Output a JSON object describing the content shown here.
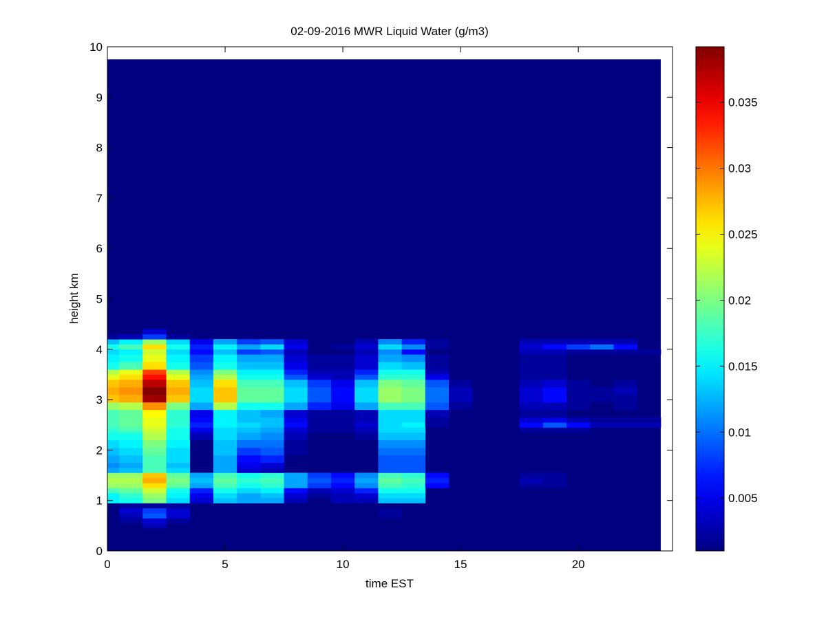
{
  "chart_data": {
    "type": "heatmap",
    "title": "02-09-2016 MWR Liquid Water (g/m3)",
    "xlabel": "time EST",
    "ylabel": "height km",
    "xlim": [
      0,
      24
    ],
    "ylim": [
      0,
      10
    ],
    "xticks": [
      0,
      5,
      10,
      15,
      20
    ],
    "yticks": [
      0,
      1,
      2,
      3,
      4,
      5,
      6,
      7,
      8,
      9,
      10
    ],
    "colormap": "jet",
    "colorbar": {
      "range": [
        0.001,
        0.0392
      ],
      "ticks": [
        0.005,
        0.01,
        0.015,
        0.02,
        0.025,
        0.03,
        0.035
      ],
      "tick_labels": [
        "0.005",
        "0.01",
        "0.015",
        "0.02",
        "0.025",
        "0.03",
        "0.035"
      ]
    },
    "background_value": 0.001,
    "data_extent": {
      "x": [
        0,
        23.5
      ],
      "y": [
        0,
        9.75
      ]
    },
    "time_columns": [
      0,
      1,
      2,
      3,
      4,
      5,
      6,
      7,
      8,
      9,
      10,
      11,
      12,
      13,
      14,
      15,
      16,
      17,
      18,
      19,
      20,
      21,
      22,
      23
    ],
    "height_rows": [
      [
        0.45,
        0.55
      ],
      [
        0.55,
        0.65
      ],
      [
        0.65,
        0.75
      ],
      [
        0.75,
        0.85
      ],
      [
        0.85,
        0.95
      ],
      [
        0.95,
        1.05
      ],
      [
        1.05,
        1.15
      ],
      [
        1.15,
        1.25
      ],
      [
        1.25,
        1.35
      ],
      [
        1.35,
        1.45
      ],
      [
        1.45,
        1.55
      ],
      [
        1.55,
        1.65
      ],
      [
        1.65,
        1.75
      ],
      [
        1.75,
        1.9
      ],
      [
        1.9,
        2.05
      ],
      [
        2.05,
        2.2
      ],
      [
        2.2,
        2.35
      ],
      [
        2.35,
        2.45
      ],
      [
        2.45,
        2.55
      ],
      [
        2.55,
        2.65
      ],
      [
        2.65,
        2.8
      ],
      [
        2.8,
        2.95
      ],
      [
        2.95,
        3.1
      ],
      [
        3.1,
        3.25
      ],
      [
        3.25,
        3.4
      ],
      [
        3.4,
        3.5
      ],
      [
        3.5,
        3.6
      ],
      [
        3.6,
        3.75
      ],
      [
        3.75,
        3.9
      ],
      [
        3.9,
        4.0
      ],
      [
        4.0,
        4.1
      ],
      [
        4.1,
        4.2
      ],
      [
        4.2,
        4.3
      ],
      [
        4.3,
        4.4
      ]
    ],
    "values": [
      [
        0.001,
        0.001,
        0.003,
        0.001,
        0.001,
        0.001,
        0.001,
        0.001,
        0.001,
        0.001,
        0.001,
        0.001,
        0.001,
        0.001,
        0.001,
        0.001,
        0.001,
        0.001,
        0.001,
        0.001,
        0.001,
        0.001,
        0.001,
        0.001
      ],
      [
        0.001,
        0.002,
        0.004,
        0.002,
        0.001,
        0.001,
        0.001,
        0.001,
        0.001,
        0.001,
        0.001,
        0.001,
        0.001,
        0.001,
        0.001,
        0.001,
        0.001,
        0.001,
        0.001,
        0.001,
        0.001,
        0.001,
        0.001,
        0.001
      ],
      [
        0.001,
        0.003,
        0.009,
        0.004,
        0.001,
        0.001,
        0.001,
        0.001,
        0.001,
        0.001,
        0.001,
        0.001,
        0.002,
        0.001,
        0.001,
        0.001,
        0.001,
        0.001,
        0.001,
        0.001,
        0.001,
        0.001,
        0.001,
        0.001
      ],
      [
        0.001,
        0.004,
        0.008,
        0.004,
        0.001,
        0.001,
        0.001,
        0.001,
        0.001,
        0.001,
        0.001,
        0.001,
        0.002,
        0.001,
        0.001,
        0.001,
        0.001,
        0.001,
        0.001,
        0.001,
        0.001,
        0.001,
        0.001,
        0.001
      ],
      [
        0.001,
        0.002,
        0.002,
        0.002,
        0.001,
        0.001,
        0.001,
        0.001,
        0.001,
        0.001,
        0.001,
        0.001,
        0.001,
        0.001,
        0.001,
        0.001,
        0.001,
        0.001,
        0.001,
        0.001,
        0.001,
        0.001,
        0.001,
        0.001
      ],
      [
        0.015,
        0.016,
        0.02,
        0.014,
        0.004,
        0.013,
        0.012,
        0.012,
        0.003,
        0.001,
        0.003,
        0.003,
        0.013,
        0.013,
        0.001,
        0.001,
        0.001,
        0.001,
        0.001,
        0.001,
        0.001,
        0.001,
        0.001,
        0.001
      ],
      [
        0.015,
        0.017,
        0.021,
        0.015,
        0.005,
        0.014,
        0.012,
        0.013,
        0.004,
        0.002,
        0.003,
        0.004,
        0.014,
        0.014,
        0.001,
        0.001,
        0.001,
        0.001,
        0.001,
        0.001,
        0.001,
        0.001,
        0.001,
        0.001
      ],
      [
        0.018,
        0.019,
        0.023,
        0.016,
        0.007,
        0.016,
        0.014,
        0.015,
        0.006,
        0.003,
        0.004,
        0.007,
        0.016,
        0.016,
        0.001,
        0.001,
        0.001,
        0.001,
        0.001,
        0.001,
        0.001,
        0.001,
        0.001,
        0.001
      ],
      [
        0.021,
        0.021,
        0.026,
        0.019,
        0.012,
        0.018,
        0.016,
        0.017,
        0.012,
        0.008,
        0.006,
        0.011,
        0.018,
        0.017,
        0.006,
        0.001,
        0.001,
        0.001,
        0.002,
        0.002,
        0.001,
        0.001,
        0.001,
        0.001
      ],
      [
        0.022,
        0.022,
        0.028,
        0.02,
        0.013,
        0.019,
        0.017,
        0.018,
        0.012,
        0.009,
        0.007,
        0.012,
        0.019,
        0.018,
        0.007,
        0.001,
        0.001,
        0.001,
        0.003,
        0.002,
        0.001,
        0.001,
        0.001,
        0.001
      ],
      [
        0.021,
        0.021,
        0.027,
        0.019,
        0.012,
        0.018,
        0.016,
        0.017,
        0.012,
        0.008,
        0.006,
        0.011,
        0.018,
        0.017,
        0.006,
        0.001,
        0.001,
        0.001,
        0.002,
        0.002,
        0.001,
        0.001,
        0.001,
        0.001
      ],
      [
        0.012,
        0.013,
        0.018,
        0.014,
        0.001,
        0.012,
        0.004,
        0.003,
        0.001,
        0.001,
        0.001,
        0.001,
        0.009,
        0.009,
        0.001,
        0.001,
        0.001,
        0.001,
        0.001,
        0.001,
        0.001,
        0.001,
        0.001,
        0.001
      ],
      [
        0.011,
        0.012,
        0.018,
        0.013,
        0.001,
        0.012,
        0.005,
        0.004,
        0.001,
        0.001,
        0.001,
        0.001,
        0.009,
        0.009,
        0.001,
        0.001,
        0.001,
        0.001,
        0.001,
        0.001,
        0.001,
        0.001,
        0.001,
        0.001
      ],
      [
        0.012,
        0.013,
        0.018,
        0.014,
        0.001,
        0.012,
        0.006,
        0.007,
        0.001,
        0.001,
        0.001,
        0.001,
        0.009,
        0.009,
        0.001,
        0.001,
        0.001,
        0.001,
        0.001,
        0.001,
        0.001,
        0.001,
        0.001,
        0.001
      ],
      [
        0.013,
        0.014,
        0.019,
        0.014,
        0.001,
        0.013,
        0.008,
        0.009,
        0.002,
        0.001,
        0.001,
        0.001,
        0.01,
        0.01,
        0.001,
        0.001,
        0.001,
        0.001,
        0.001,
        0.001,
        0.001,
        0.001,
        0.001,
        0.001
      ],
      [
        0.014,
        0.015,
        0.02,
        0.015,
        0.001,
        0.013,
        0.01,
        0.01,
        0.002,
        0.001,
        0.001,
        0.001,
        0.011,
        0.011,
        0.001,
        0.001,
        0.001,
        0.001,
        0.001,
        0.001,
        0.001,
        0.001,
        0.001,
        0.001
      ],
      [
        0.016,
        0.016,
        0.022,
        0.016,
        0.003,
        0.014,
        0.012,
        0.011,
        0.003,
        0.001,
        0.001,
        0.002,
        0.013,
        0.013,
        0.001,
        0.001,
        0.001,
        0.001,
        0.001,
        0.001,
        0.001,
        0.001,
        0.001,
        0.001
      ],
      [
        0.017,
        0.018,
        0.023,
        0.016,
        0.005,
        0.014,
        0.013,
        0.012,
        0.004,
        0.002,
        0.002,
        0.003,
        0.014,
        0.014,
        0.001,
        0.001,
        0.001,
        0.001,
        0.002,
        0.002,
        0.002,
        0.001,
        0.001,
        0.001
      ],
      [
        0.018,
        0.019,
        0.024,
        0.017,
        0.007,
        0.015,
        0.014,
        0.013,
        0.006,
        0.002,
        0.002,
        0.004,
        0.014,
        0.015,
        0.002,
        0.001,
        0.001,
        0.001,
        0.006,
        0.009,
        0.006,
        0.003,
        0.003,
        0.003
      ],
      [
        0.018,
        0.019,
        0.024,
        0.017,
        0.006,
        0.015,
        0.013,
        0.013,
        0.005,
        0.002,
        0.002,
        0.003,
        0.014,
        0.014,
        0.002,
        0.001,
        0.001,
        0.001,
        0.004,
        0.005,
        0.003,
        0.002,
        0.002,
        0.002
      ],
      [
        0.018,
        0.019,
        0.025,
        0.017,
        0.005,
        0.015,
        0.013,
        0.012,
        0.004,
        0.002,
        0.002,
        0.003,
        0.014,
        0.014,
        0.003,
        0.001,
        0.001,
        0.001,
        0.002,
        0.002,
        0.001,
        0.001,
        0.001,
        0.001
      ],
      [
        0.021,
        0.022,
        0.029,
        0.02,
        0.012,
        0.022,
        0.016,
        0.016,
        0.012,
        0.007,
        0.005,
        0.012,
        0.018,
        0.018,
        0.009,
        0.002,
        0.001,
        0.001,
        0.003,
        0.003,
        0.002,
        0.001,
        0.002,
        0.001
      ],
      [
        0.027,
        0.028,
        0.038,
        0.027,
        0.014,
        0.027,
        0.019,
        0.019,
        0.014,
        0.009,
        0.006,
        0.014,
        0.021,
        0.02,
        0.01,
        0.003,
        0.001,
        0.001,
        0.004,
        0.006,
        0.002,
        0.002,
        0.002,
        0.001
      ],
      [
        0.028,
        0.029,
        0.039,
        0.028,
        0.014,
        0.027,
        0.019,
        0.019,
        0.014,
        0.009,
        0.006,
        0.014,
        0.021,
        0.02,
        0.01,
        0.003,
        0.001,
        0.001,
        0.004,
        0.006,
        0.002,
        0.002,
        0.003,
        0.001
      ],
      [
        0.027,
        0.028,
        0.037,
        0.027,
        0.013,
        0.026,
        0.018,
        0.018,
        0.013,
        0.008,
        0.005,
        0.013,
        0.02,
        0.019,
        0.009,
        0.002,
        0.001,
        0.001,
        0.003,
        0.004,
        0.002,
        0.001,
        0.002,
        0.001
      ],
      [
        0.024,
        0.026,
        0.034,
        0.024,
        0.012,
        0.022,
        0.016,
        0.016,
        0.009,
        0.004,
        0.003,
        0.009,
        0.017,
        0.017,
        0.005,
        0.001,
        0.001,
        0.001,
        0.002,
        0.002,
        0.001,
        0.001,
        0.001,
        0.001
      ],
      [
        0.022,
        0.024,
        0.032,
        0.022,
        0.011,
        0.02,
        0.015,
        0.015,
        0.007,
        0.003,
        0.003,
        0.007,
        0.016,
        0.016,
        0.003,
        0.001,
        0.001,
        0.001,
        0.002,
        0.002,
        0.001,
        0.001,
        0.001,
        0.001
      ],
      [
        0.016,
        0.018,
        0.026,
        0.016,
        0.009,
        0.016,
        0.013,
        0.013,
        0.005,
        0.002,
        0.002,
        0.004,
        0.014,
        0.013,
        0.002,
        0.001,
        0.001,
        0.001,
        0.002,
        0.002,
        0.001,
        0.001,
        0.001,
        0.001
      ],
      [
        0.015,
        0.016,
        0.024,
        0.015,
        0.008,
        0.015,
        0.012,
        0.012,
        0.004,
        0.002,
        0.002,
        0.004,
        0.012,
        0.011,
        0.002,
        0.001,
        0.001,
        0.001,
        0.002,
        0.002,
        0.001,
        0.001,
        0.001,
        0.001
      ],
      [
        0.014,
        0.015,
        0.023,
        0.014,
        0.006,
        0.013,
        0.008,
        0.009,
        0.003,
        0.001,
        0.001,
        0.003,
        0.011,
        0.006,
        0.001,
        0.001,
        0.001,
        0.001,
        0.003,
        0.003,
        0.002,
        0.002,
        0.002,
        0.002
      ],
      [
        0.016,
        0.018,
        0.026,
        0.016,
        0.007,
        0.015,
        0.012,
        0.014,
        0.005,
        0.001,
        0.002,
        0.004,
        0.014,
        0.011,
        0.002,
        0.001,
        0.001,
        0.001,
        0.004,
        0.006,
        0.008,
        0.01,
        0.006,
        0.001
      ],
      [
        0.013,
        0.015,
        0.021,
        0.014,
        0.005,
        0.012,
        0.008,
        0.009,
        0.004,
        0.001,
        0.001,
        0.003,
        0.011,
        0.007,
        0.002,
        0.001,
        0.001,
        0.001,
        0.003,
        0.003,
        0.003,
        0.003,
        0.003,
        0.001
      ],
      [
        0.002,
        0.003,
        0.008,
        0.002,
        0.001,
        0.001,
        0.001,
        0.001,
        0.001,
        0.001,
        0.001,
        0.001,
        0.001,
        0.001,
        0.001,
        0.001,
        0.001,
        0.001,
        0.001,
        0.001,
        0.001,
        0.001,
        0.001,
        0.001
      ],
      [
        0.001,
        0.001,
        0.004,
        0.001,
        0.001,
        0.001,
        0.001,
        0.001,
        0.001,
        0.001,
        0.001,
        0.001,
        0.001,
        0.001,
        0.001,
        0.001,
        0.001,
        0.001,
        0.001,
        0.001,
        0.001,
        0.001,
        0.001,
        0.001
      ]
    ]
  }
}
